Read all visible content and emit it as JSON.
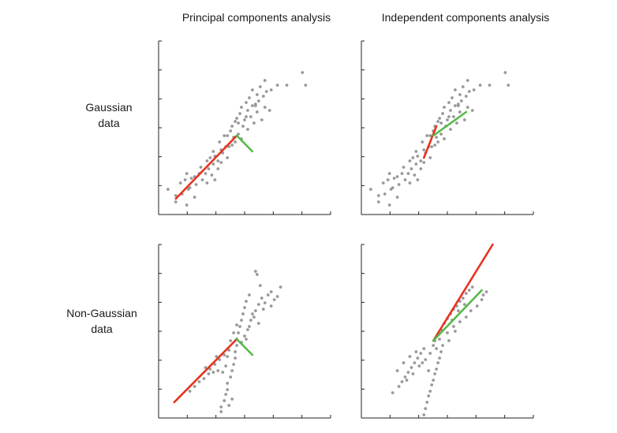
{
  "column_titles": [
    "Principal components analysis",
    "Independent components analysis"
  ],
  "row_labels": [
    {
      "line1": "Gaussian",
      "line2": "data"
    },
    {
      "line1": "Non-Gaussian",
      "line2": "data"
    }
  ],
  "colors": {
    "points": "#999999",
    "first_component": "#e8321e",
    "second_component": "#55b947",
    "axis": "#222222"
  },
  "chart_data": [
    {
      "type": "scatter",
      "title": "Principal components analysis",
      "row": "Gaussian data",
      "xlim": [
        0,
        11
      ],
      "ylim": [
        0,
        11
      ],
      "points": [
        [
          0.6,
          1.6
        ],
        [
          1.1,
          1.2
        ],
        [
          1.1,
          0.8
        ],
        [
          1.4,
          2.0
        ],
        [
          1.5,
          1.3
        ],
        [
          1.7,
          2.2
        ],
        [
          1.8,
          2.6
        ],
        [
          1.8,
          0.6
        ],
        [
          1.9,
          1.6
        ],
        [
          2.1,
          2.3
        ],
        [
          2.3,
          2.4
        ],
        [
          2.3,
          1.1
        ],
        [
          2.4,
          1.9
        ],
        [
          2.6,
          2.6
        ],
        [
          2.7,
          3.0
        ],
        [
          2.8,
          2.2
        ],
        [
          3.0,
          2.6
        ],
        [
          3.1,
          2.0
        ],
        [
          3.1,
          3.4
        ],
        [
          3.2,
          2.9
        ],
        [
          3.4,
          2.5
        ],
        [
          3.5,
          3.2
        ],
        [
          3.5,
          4.0
        ],
        [
          3.6,
          3.7
        ],
        [
          3.6,
          2.2
        ],
        [
          3.8,
          3.4
        ],
        [
          3.8,
          2.9
        ],
        [
          3.9,
          4.6
        ],
        [
          4.0,
          3.3
        ],
        [
          4.0,
          4.1
        ],
        [
          4.1,
          3.9
        ],
        [
          4.3,
          4.3
        ],
        [
          4.4,
          5.0
        ],
        [
          4.4,
          3.6
        ],
        [
          4.5,
          4.3
        ],
        [
          4.6,
          5.3
        ],
        [
          4.7,
          4.4
        ],
        [
          4.7,
          5.6
        ],
        [
          4.8,
          4.9
        ],
        [
          4.9,
          5.9
        ],
        [
          5.0,
          6.1
        ],
        [
          5.1,
          5.1
        ],
        [
          5.2,
          6.4
        ],
        [
          5.3,
          4.8
        ],
        [
          5.3,
          6.8
        ],
        [
          5.4,
          5.6
        ],
        [
          5.5,
          6.0
        ],
        [
          5.6,
          7.1
        ],
        [
          5.7,
          5.4
        ],
        [
          5.7,
          6.6
        ],
        [
          5.8,
          7.4
        ],
        [
          5.9,
          6.2
        ],
        [
          6.0,
          6.9
        ],
        [
          6.0,
          7.9
        ],
        [
          6.1,
          5.8
        ],
        [
          6.2,
          7.0
        ],
        [
          6.3,
          6.5
        ],
        [
          6.3,
          7.6
        ],
        [
          6.4,
          7.2
        ],
        [
          6.5,
          8.1
        ],
        [
          6.6,
          6.0
        ],
        [
          6.7,
          7.5
        ],
        [
          6.8,
          6.8
        ],
        [
          6.9,
          7.8
        ],
        [
          7.1,
          6.6
        ],
        [
          7.2,
          7.9
        ],
        [
          7.6,
          8.2
        ],
        [
          8.2,
          8.2
        ],
        [
          9.2,
          9.0
        ],
        [
          9.4,
          8.2
        ],
        [
          5.6,
          6.2
        ],
        [
          4.9,
          4.6
        ],
        [
          6.2,
          6.9
        ],
        [
          3.3,
          3.6
        ],
        [
          5.1,
          5.8
        ],
        [
          6.8,
          8.5
        ],
        [
          2.0,
          1.7
        ],
        [
          4.2,
          5.0
        ]
      ],
      "component_lines": [
        {
          "name": "first",
          "from": [
            1.1,
            1.0
          ],
          "to": [
            5.0,
            5.0
          ]
        },
        {
          "name": "second",
          "from": [
            5.0,
            5.0
          ],
          "to": [
            6.0,
            4.0
          ]
        }
      ]
    },
    {
      "type": "scatter",
      "title": "Independent components analysis",
      "row": "Gaussian data",
      "xlim": [
        0,
        11
      ],
      "ylim": [
        0,
        11
      ],
      "points": [
        [
          0.6,
          1.6
        ],
        [
          1.1,
          1.2
        ],
        [
          1.1,
          0.8
        ],
        [
          1.4,
          2.0
        ],
        [
          1.5,
          1.3
        ],
        [
          1.7,
          2.2
        ],
        [
          1.8,
          2.6
        ],
        [
          1.8,
          0.6
        ],
        [
          1.9,
          1.6
        ],
        [
          2.1,
          2.3
        ],
        [
          2.3,
          2.4
        ],
        [
          2.3,
          1.1
        ],
        [
          2.4,
          1.9
        ],
        [
          2.6,
          2.6
        ],
        [
          2.7,
          3.0
        ],
        [
          2.8,
          2.2
        ],
        [
          3.0,
          2.6
        ],
        [
          3.1,
          2.0
        ],
        [
          3.1,
          3.4
        ],
        [
          3.2,
          2.9
        ],
        [
          3.4,
          2.5
        ],
        [
          3.5,
          3.2
        ],
        [
          3.5,
          4.0
        ],
        [
          3.6,
          3.7
        ],
        [
          3.6,
          2.2
        ],
        [
          3.8,
          3.4
        ],
        [
          3.8,
          2.9
        ],
        [
          3.9,
          4.6
        ],
        [
          4.0,
          3.3
        ],
        [
          4.0,
          4.1
        ],
        [
          4.1,
          3.9
        ],
        [
          4.3,
          4.3
        ],
        [
          4.4,
          5.0
        ],
        [
          4.4,
          3.6
        ],
        [
          4.5,
          4.3
        ],
        [
          4.6,
          5.3
        ],
        [
          4.7,
          4.4
        ],
        [
          4.7,
          5.6
        ],
        [
          4.8,
          4.9
        ],
        [
          4.9,
          5.9
        ],
        [
          5.0,
          6.1
        ],
        [
          5.1,
          5.1
        ],
        [
          5.2,
          6.4
        ],
        [
          5.3,
          4.8
        ],
        [
          5.3,
          6.8
        ],
        [
          5.4,
          5.6
        ],
        [
          5.5,
          6.0
        ],
        [
          5.6,
          7.1
        ],
        [
          5.7,
          5.4
        ],
        [
          5.7,
          6.6
        ],
        [
          5.8,
          7.4
        ],
        [
          5.9,
          6.2
        ],
        [
          6.0,
          6.9
        ],
        [
          6.0,
          7.9
        ],
        [
          6.1,
          5.8
        ],
        [
          6.2,
          7.0
        ],
        [
          6.3,
          6.5
        ],
        [
          6.3,
          7.6
        ],
        [
          6.4,
          7.2
        ],
        [
          6.5,
          8.1
        ],
        [
          6.6,
          6.0
        ],
        [
          6.7,
          7.5
        ],
        [
          6.8,
          6.8
        ],
        [
          6.9,
          7.8
        ],
        [
          7.1,
          6.6
        ],
        [
          7.2,
          7.9
        ],
        [
          7.6,
          8.2
        ],
        [
          8.2,
          8.2
        ],
        [
          9.2,
          9.0
        ],
        [
          9.4,
          8.2
        ],
        [
          5.6,
          6.2
        ],
        [
          4.9,
          4.6
        ],
        [
          6.2,
          6.9
        ],
        [
          3.3,
          3.6
        ],
        [
          5.1,
          5.8
        ],
        [
          6.8,
          8.5
        ],
        [
          2.0,
          1.7
        ],
        [
          4.2,
          5.0
        ]
      ],
      "component_lines": [
        {
          "name": "first",
          "from": [
            4.0,
            3.6
          ],
          "to": [
            4.8,
            5.6
          ]
        },
        {
          "name": "second",
          "from": [
            4.6,
            5.0
          ],
          "to": [
            6.7,
            6.5
          ]
        }
      ]
    },
    {
      "type": "scatter",
      "title": "Principal components analysis",
      "row": "Non-Gaussian data",
      "xlim": [
        0,
        11
      ],
      "ylim": [
        0,
        11
      ],
      "points": [
        [
          4.0,
          0.4
        ],
        [
          4.0,
          0.7
        ],
        [
          4.2,
          1.1
        ],
        [
          4.3,
          1.5
        ],
        [
          4.4,
          1.8
        ],
        [
          4.4,
          2.2
        ],
        [
          4.5,
          0.8
        ],
        [
          4.6,
          2.6
        ],
        [
          4.7,
          3.0
        ],
        [
          4.8,
          3.4
        ],
        [
          4.7,
          1.2
        ],
        [
          4.9,
          3.8
        ],
        [
          4.9,
          4.2
        ],
        [
          5.0,
          4.6
        ],
        [
          4.1,
          2.9
        ],
        [
          4.3,
          3.3
        ],
        [
          3.8,
          3.0
        ],
        [
          3.5,
          2.9
        ],
        [
          3.2,
          2.8
        ],
        [
          2.9,
          2.5
        ],
        [
          2.6,
          2.3
        ],
        [
          2.3,
          2.0
        ],
        [
          2.0,
          1.7
        ],
        [
          3.3,
          3.1
        ],
        [
          3.6,
          3.4
        ],
        [
          3.9,
          3.7
        ],
        [
          4.2,
          4.0
        ],
        [
          3.0,
          3.2
        ],
        [
          3.7,
          3.9
        ],
        [
          4.5,
          4.3
        ],
        [
          5.0,
          5.0
        ],
        [
          5.1,
          5.4
        ],
        [
          5.2,
          5.8
        ],
        [
          5.3,
          6.2
        ],
        [
          5.4,
          6.6
        ],
        [
          5.5,
          7.0
        ],
        [
          5.6,
          7.4
        ],
        [
          5.6,
          5.0
        ],
        [
          5.7,
          5.6
        ],
        [
          5.8,
          5.8
        ],
        [
          5.9,
          6.2
        ],
        [
          6.0,
          6.6
        ],
        [
          6.2,
          6.8
        ],
        [
          6.4,
          7.2
        ],
        [
          6.6,
          7.6
        ],
        [
          6.8,
          7.3
        ],
        [
          7.0,
          7.8
        ],
        [
          7.2,
          8.0
        ],
        [
          7.4,
          7.5
        ],
        [
          7.6,
          7.7
        ],
        [
          7.8,
          8.3
        ],
        [
          6.2,
          9.3
        ],
        [
          6.3,
          9.1
        ],
        [
          6.5,
          8.4
        ],
        [
          5.8,
          7.8
        ],
        [
          6.1,
          6.4
        ],
        [
          4.6,
          4.9
        ],
        [
          4.8,
          5.4
        ],
        [
          5.3,
          4.8
        ],
        [
          5.0,
          5.9
        ],
        [
          6.7,
          6.9
        ],
        [
          7.2,
          7.1
        ],
        [
          6.4,
          6.0
        ],
        [
          4.4,
          3.9
        ],
        [
          5.5,
          5.2
        ]
      ],
      "component_lines": [
        {
          "name": "first",
          "from": [
            1.0,
            1.0
          ],
          "to": [
            5.0,
            5.0
          ]
        },
        {
          "name": "second",
          "from": [
            5.0,
            5.0
          ],
          "to": [
            6.0,
            4.0
          ]
        }
      ]
    },
    {
      "type": "scatter",
      "title": "Independent components analysis",
      "row": "Non-Gaussian data",
      "xlim": [
        0,
        11
      ],
      "ylim": [
        0,
        11
      ],
      "points": [
        [
          2.0,
          1.6
        ],
        [
          2.4,
          2.0
        ],
        [
          2.6,
          2.3
        ],
        [
          2.8,
          2.6
        ],
        [
          3.0,
          2.9
        ],
        [
          3.2,
          3.2
        ],
        [
          3.4,
          3.5
        ],
        [
          3.6,
          3.8
        ],
        [
          3.8,
          4.1
        ],
        [
          4.0,
          4.4
        ],
        [
          2.9,
          2.4
        ],
        [
          3.3,
          2.8
        ],
        [
          3.7,
          3.3
        ],
        [
          4.1,
          3.7
        ],
        [
          4.4,
          4.1
        ],
        [
          4.6,
          4.6
        ],
        [
          2.3,
          3.0
        ],
        [
          2.7,
          3.5
        ],
        [
          3.1,
          3.9
        ],
        [
          3.5,
          4.2
        ],
        [
          4.0,
          0.2
        ],
        [
          4.1,
          0.6
        ],
        [
          4.2,
          1.0
        ],
        [
          4.3,
          1.4
        ],
        [
          4.4,
          1.7
        ],
        [
          4.5,
          2.1
        ],
        [
          4.6,
          2.4
        ],
        [
          4.7,
          2.8
        ],
        [
          4.8,
          3.1
        ],
        [
          4.9,
          3.5
        ],
        [
          5.0,
          3.8
        ],
        [
          5.1,
          4.2
        ],
        [
          4.7,
          4.9
        ],
        [
          4.9,
          5.3
        ],
        [
          5.1,
          5.6
        ],
        [
          5.3,
          6.0
        ],
        [
          5.5,
          6.3
        ],
        [
          5.7,
          6.6
        ],
        [
          5.9,
          6.9
        ],
        [
          6.1,
          7.1
        ],
        [
          6.3,
          7.4
        ],
        [
          6.5,
          7.6
        ],
        [
          6.7,
          7.9
        ],
        [
          6.9,
          8.1
        ],
        [
          7.1,
          8.3
        ],
        [
          5.5,
          5.4
        ],
        [
          5.9,
          5.8
        ],
        [
          6.3,
          6.1
        ],
        [
          6.7,
          6.4
        ],
        [
          7.0,
          6.8
        ],
        [
          7.4,
          7.1
        ],
        [
          7.7,
          7.5
        ],
        [
          8.0,
          8.0
        ],
        [
          5.0,
          5.0
        ],
        [
          5.2,
          4.6
        ],
        [
          5.8,
          6.2
        ],
        [
          6.2,
          6.8
        ],
        [
          6.6,
          7.2
        ],
        [
          4.3,
          3.0
        ],
        [
          4.8,
          4.4
        ],
        [
          5.6,
          4.9
        ],
        [
          6.0,
          5.5
        ],
        [
          7.8,
          7.8
        ],
        [
          3.9,
          3.5
        ]
      ],
      "component_lines": [
        {
          "name": "first",
          "from": [
            4.6,
            4.9
          ],
          "to": [
            8.4,
            11.0
          ]
        },
        {
          "name": "second",
          "from": [
            4.6,
            4.9
          ],
          "to": [
            7.7,
            8.1
          ]
        }
      ]
    }
  ]
}
